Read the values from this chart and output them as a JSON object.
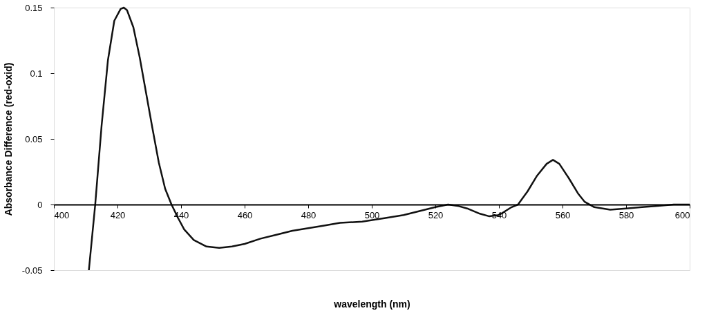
{
  "chart_data": {
    "type": "line",
    "xlabel": "wavelength (nm)",
    "ylabel": "Absorbance Difference (red-oxid)",
    "xlim": [
      400,
      600
    ],
    "ylim": [
      -0.05,
      0.15
    ],
    "xticks": [
      400,
      420,
      440,
      460,
      480,
      500,
      520,
      540,
      560,
      580,
      600
    ],
    "yticks": [
      -0.05,
      0,
      0.05,
      0.1,
      0.15
    ],
    "grid": false,
    "marker": "none",
    "line_style": "solid",
    "series": [
      {
        "color": "#111111",
        "x": [
          411,
          412,
          413,
          415,
          417,
          419,
          421,
          422,
          423,
          425,
          427,
          429,
          431,
          433,
          435,
          437,
          439,
          441,
          444,
          448,
          452,
          456,
          460,
          465,
          470,
          475,
          480,
          485,
          490,
          497,
          505,
          510,
          515,
          520,
          524,
          527,
          530,
          534,
          537,
          540,
          542,
          544,
          546,
          549,
          552,
          555,
          557,
          559,
          562,
          565,
          567,
          570,
          575,
          580,
          585,
          590,
          595,
          600
        ],
        "values": [
          -0.05,
          -0.025,
          0,
          0.06,
          0.11,
          0.14,
          0.149,
          0.15,
          0.148,
          0.135,
          0.112,
          0.085,
          0.058,
          0.032,
          0.012,
          0,
          -0.01,
          -0.019,
          -0.027,
          -0.032,
          -0.033,
          -0.032,
          -0.03,
          -0.026,
          -0.023,
          -0.02,
          -0.018,
          -0.016,
          -0.014,
          -0.013,
          -0.01,
          -0.008,
          -0.005,
          -0.002,
          0,
          -0.001,
          -0.003,
          -0.007,
          -0.009,
          -0.008,
          -0.005,
          -0.002,
          0,
          0.01,
          0.022,
          0.031,
          0.034,
          0.031,
          0.02,
          0.008,
          0.002,
          -0.002,
          -0.004,
          -0.003,
          -0.002,
          -0.001,
          0,
          0
        ]
      }
    ]
  }
}
